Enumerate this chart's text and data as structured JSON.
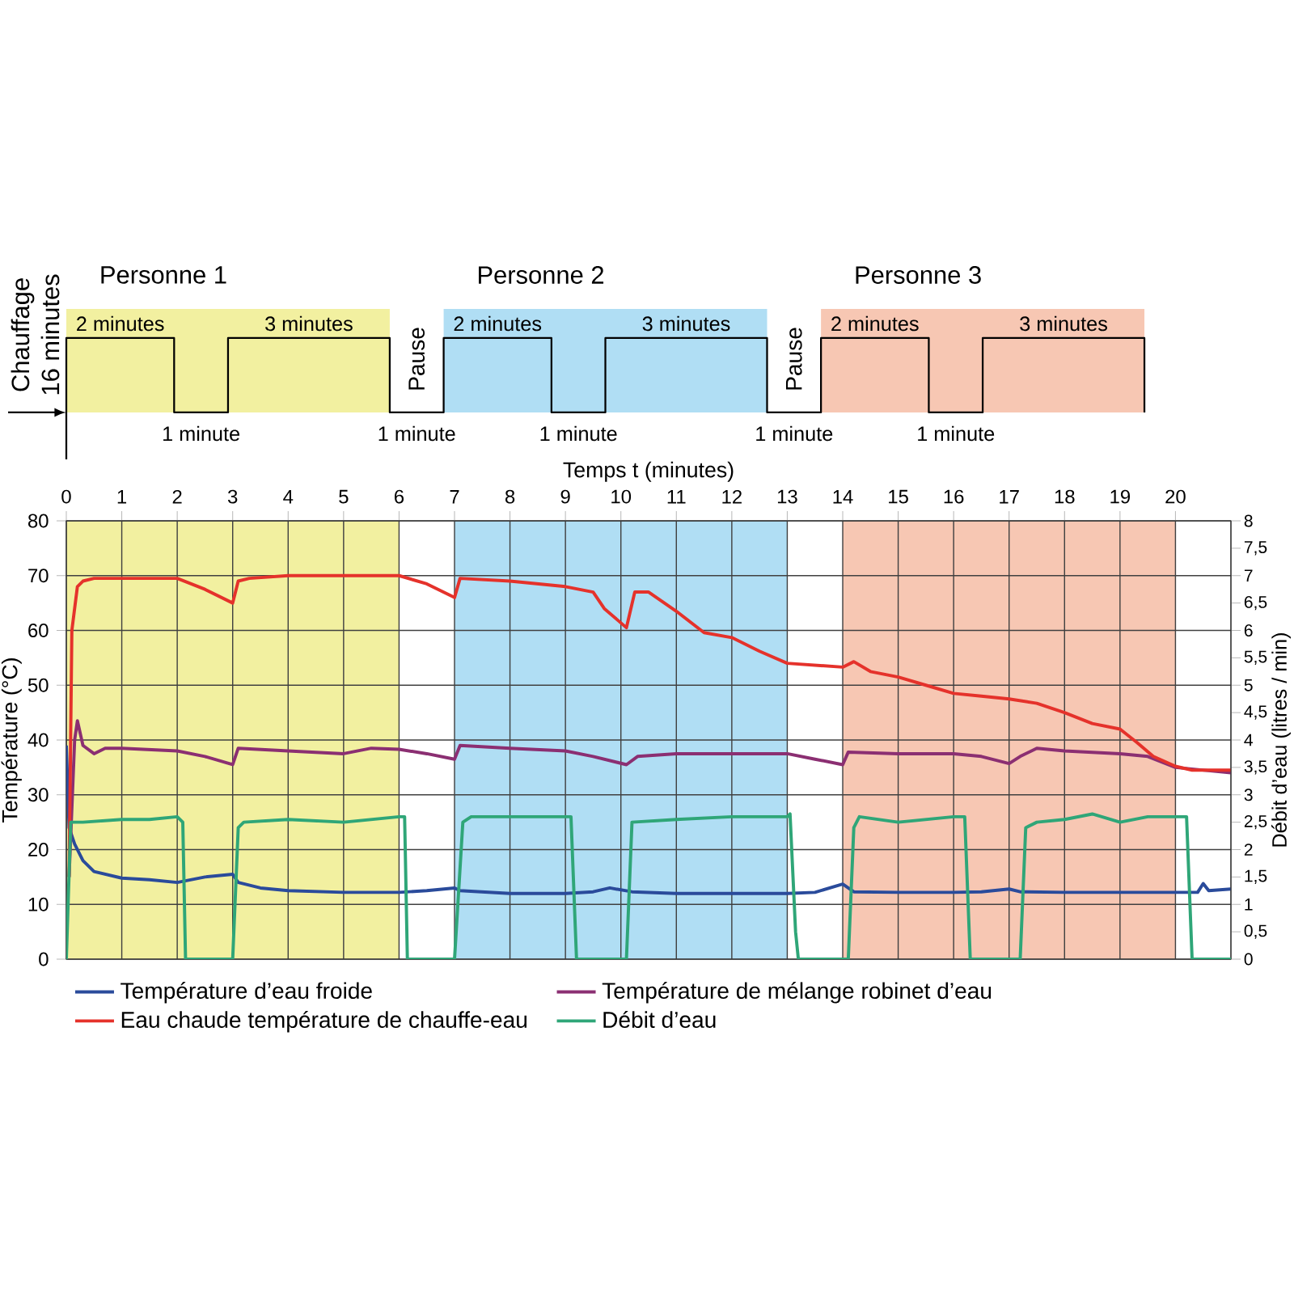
{
  "chart_data": {
    "type": "line",
    "xlabel": "Temps t (minutes)",
    "ylabel": "Température (°C)",
    "y2label": "Débit d’eau (litres / min)",
    "xlim": [
      0,
      21
    ],
    "xticks": [
      0,
      1,
      2,
      3,
      4,
      5,
      6,
      7,
      8,
      9,
      10,
      11,
      12,
      13,
      14,
      15,
      16,
      17,
      18,
      19,
      20
    ],
    "ylim": [
      0,
      80
    ],
    "yticks": [
      0,
      10,
      20,
      30,
      40,
      50,
      60,
      70,
      80
    ],
    "y2lim": [
      0,
      8
    ],
    "y2ticks": [
      0,
      {
        "value": 0.5,
        "label": "0,5"
      },
      1,
      {
        "value": 1.5,
        "label": "1,5"
      },
      2,
      {
        "value": 2.5,
        "label": "2,5"
      },
      3,
      {
        "value": 3.5,
        "label": "3,5"
      },
      4,
      {
        "value": 4.5,
        "label": "4,5"
      },
      5,
      {
        "value": 5.5,
        "label": "5,5"
      },
      6,
      {
        "value": 6.5,
        "label": "6,5"
      },
      7,
      {
        "value": 7.5,
        "label": "7,5"
      },
      8
    ],
    "grid": true,
    "legend": "bottom",
    "bands": [
      {
        "axis": "x",
        "from": 0,
        "to": 6,
        "color": "#f2f0a0"
      },
      {
        "axis": "x",
        "from": 7,
        "to": 13,
        "color": "#b0def4"
      },
      {
        "axis": "x",
        "from": 14,
        "to": 20,
        "color": "#f7c7b3"
      }
    ],
    "annotations": [
      "Chauffage",
      "16 minutes",
      "Personne 1",
      "2 minutes",
      "1 minute",
      "3 minutes",
      "Pause",
      "1 minute",
      "Personne 2",
      "2 minutes",
      "1 minute",
      "3 minutes",
      "Pause",
      "1 minute",
      "Personne 3",
      "2 minutes",
      "1 minute",
      "3 minutes"
    ],
    "series": [
      {
        "name": "Température d’eau froide",
        "color": "#2a4b9b",
        "x": [
          0,
          0.05,
          0.15,
          0.3,
          0.5,
          1,
          1.5,
          2,
          2.5,
          3,
          3.1,
          3.5,
          4,
          5,
          6,
          6.5,
          7,
          7.1,
          8,
          9,
          9.5,
          9.8,
          10.2,
          11,
          12,
          13,
          13.5,
          14,
          14.2,
          15,
          16,
          16.5,
          17,
          17.2,
          18,
          19,
          20,
          20.4,
          20.5,
          20.6,
          21
        ],
        "values": [
          39,
          24,
          21,
          18,
          16,
          14.8,
          14.5,
          14,
          15,
          15.5,
          14,
          13,
          12.5,
          12.2,
          12.2,
          12.5,
          13,
          12.5,
          12,
          12,
          12.3,
          13,
          12.3,
          12,
          12,
          12,
          12.2,
          13.7,
          12.3,
          12.2,
          12.2,
          12.3,
          12.8,
          12.3,
          12.2,
          12.2,
          12.2,
          12.2,
          13.8,
          12.5,
          12.8
        ]
      },
      {
        "name": "Température de mélange robinet d’eau",
        "color": "#8b2f72",
        "x": [
          0.05,
          0.15,
          0.2,
          0.3,
          0.5,
          0.7,
          1,
          2,
          2.5,
          3,
          3.1,
          4,
          5,
          5.5,
          6,
          6.5,
          7,
          7.1,
          8,
          9,
          9.5,
          10.1,
          10.3,
          11,
          12,
          13,
          13.5,
          14,
          14.1,
          15,
          16,
          16.5,
          17,
          17.2,
          17.5,
          18,
          19,
          19.5,
          20,
          20.5,
          21
        ],
        "values": [
          15,
          40,
          43.5,
          39,
          37.5,
          38.5,
          38.5,
          38,
          37,
          35.5,
          38.5,
          38,
          37.5,
          38.5,
          38.3,
          37.5,
          36.5,
          39,
          38.5,
          38,
          37,
          35.5,
          37,
          37.5,
          37.5,
          37.5,
          36.5,
          35.5,
          37.8,
          37.5,
          37.5,
          37,
          35.7,
          37,
          38.5,
          38,
          37.5,
          37,
          35,
          34.5,
          34
        ]
      },
      {
        "name": "Eau chaude température de chauffe-eau",
        "color": "#e5322b",
        "x": [
          0.05,
          0.1,
          0.2,
          0.3,
          0.5,
          1,
          2,
          2.5,
          3,
          3.1,
          3.3,
          4,
          5,
          6,
          6.5,
          7,
          7.1,
          8,
          9,
          9.5,
          9.7,
          10.1,
          10.25,
          10.5,
          11,
          11.5,
          12,
          12.5,
          13,
          14,
          14.2,
          14.5,
          15,
          15.5,
          16,
          16.5,
          17,
          17.5,
          18,
          18.5,
          19,
          19.3,
          19.6,
          20,
          20.3,
          21
        ],
        "values": [
          15,
          60,
          68,
          69,
          69.5,
          69.5,
          69.5,
          67.5,
          65,
          69,
          69.5,
          70,
          70,
          70,
          68.5,
          66,
          69.5,
          69,
          68,
          67,
          64,
          60.5,
          67,
          67,
          63.5,
          59.6,
          58.7,
          56.2,
          54,
          53.3,
          54.3,
          52.5,
          51.5,
          50,
          48.5,
          48,
          47.5,
          46.7,
          45,
          43,
          42,
          39.6,
          37,
          35.2,
          34.5,
          34.5
        ]
      },
      {
        "name": "Débit d’eau",
        "color": "#2fa678",
        "axis": "y2",
        "x": [
          0,
          0.08,
          0.3,
          1,
          1.5,
          2,
          2.1,
          2.15,
          3,
          3.1,
          3.2,
          4,
          5,
          6,
          6.1,
          6.15,
          7,
          7.15,
          7.3,
          8,
          9,
          9.1,
          9.2,
          10.1,
          10.2,
          11,
          12,
          13,
          13.05,
          13.15,
          13.2,
          14.1,
          14.2,
          14.3,
          15,
          16,
          16.2,
          16.3,
          17.2,
          17.3,
          17.5,
          18,
          18.5,
          19,
          19.5,
          20.2,
          20.3,
          21
        ],
        "values": [
          0,
          2.5,
          2.5,
          2.55,
          2.55,
          2.6,
          2.5,
          0,
          0,
          2.4,
          2.5,
          2.55,
          2.5,
          2.6,
          2.6,
          0,
          0,
          2.5,
          2.6,
          2.6,
          2.6,
          2.6,
          0,
          0,
          2.5,
          2.55,
          2.6,
          2.6,
          2.65,
          0.5,
          0,
          0,
          2.4,
          2.6,
          2.5,
          2.6,
          2.6,
          0,
          0,
          2.4,
          2.5,
          2.55,
          2.65,
          2.5,
          2.6,
          2.6,
          0,
          0
        ]
      }
    ]
  }
}
